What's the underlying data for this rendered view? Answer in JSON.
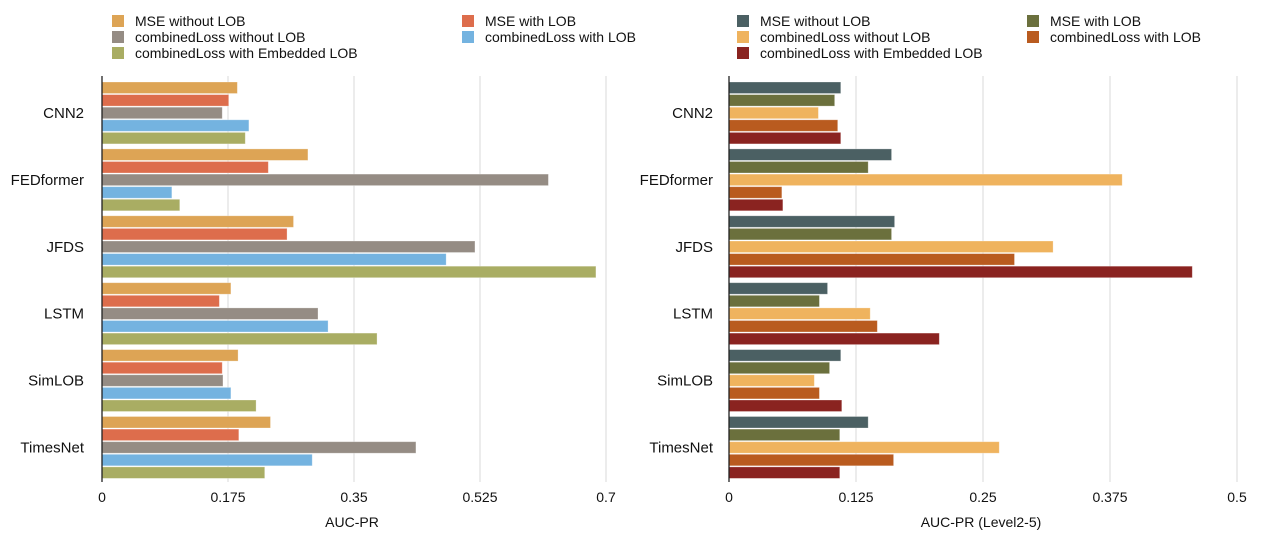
{
  "chart_data": [
    {
      "type": "bar",
      "orientation": "horizontal",
      "title": "",
      "xlabel": "AUC-PR",
      "ylabel": "",
      "xlim": [
        0,
        0.7
      ],
      "xticks": [
        0,
        0.175,
        0.35,
        0.525,
        0.7
      ],
      "xtick_labels": [
        "0",
        "0.175",
        "0.35",
        "0.525",
        "0.7"
      ],
      "grid": "vertical",
      "legend_position": "top",
      "categories": [
        "CNN2",
        "FEDformer",
        "JFDS",
        "LSTM",
        "SimLOB",
        "TimesNet"
      ],
      "series": [
        {
          "name": "MSE without LOB",
          "color": "#DDA455",
          "values": [
            0.188,
            0.286,
            0.266,
            0.179,
            0.189,
            0.234
          ]
        },
        {
          "name": "MSE with LOB",
          "color": "#DD6D4C",
          "values": [
            0.176,
            0.231,
            0.257,
            0.163,
            0.167,
            0.19
          ]
        },
        {
          "name": "combinedLoss without LOB",
          "color": "#958C84",
          "values": [
            0.167,
            0.62,
            0.518,
            0.3,
            0.168,
            0.436
          ]
        },
        {
          "name": "combinedLoss with LOB",
          "color": "#74B3E0",
          "values": [
            0.204,
            0.097,
            0.478,
            0.314,
            0.179,
            0.292
          ]
        },
        {
          "name": "combinedLoss with Embedded LOB",
          "color": "#A9AD63",
          "values": [
            0.199,
            0.108,
            0.686,
            0.382,
            0.214,
            0.226
          ]
        }
      ]
    },
    {
      "type": "bar",
      "orientation": "horizontal",
      "title": "",
      "xlabel": "AUC-PR (Level2-5)",
      "ylabel": "",
      "xlim": [
        0,
        0.5
      ],
      "xticks": [
        0,
        0.125,
        0.25,
        0.375,
        0.5
      ],
      "xtick_labels": [
        "0",
        "0.125",
        "0.25",
        "0.375",
        "0.5"
      ],
      "grid": "vertical",
      "legend_position": "top",
      "categories": [
        "CNN2",
        "FEDformer",
        "JFDS",
        "LSTM",
        "SimLOB",
        "TimesNet"
      ],
      "series": [
        {
          "name": "MSE without LOB",
          "color": "#4B6063",
          "values": [
            0.11,
            0.16,
            0.163,
            0.097,
            0.11,
            0.137
          ]
        },
        {
          "name": "MSE with LOB",
          "color": "#6B703D",
          "values": [
            0.104,
            0.137,
            0.16,
            0.089,
            0.099,
            0.109
          ]
        },
        {
          "name": "combinedLoss without LOB",
          "color": "#EFB35E",
          "values": [
            0.088,
            0.387,
            0.319,
            0.139,
            0.084,
            0.266
          ]
        },
        {
          "name": "combinedLoss with LOB",
          "color": "#B95B1F",
          "values": [
            0.107,
            0.052,
            0.281,
            0.146,
            0.089,
            0.162
          ]
        },
        {
          "name": "combinedLoss with Embedded LOB",
          "color": "#8A2320",
          "values": [
            0.11,
            0.053,
            0.456,
            0.207,
            0.111,
            0.109
          ]
        }
      ]
    }
  ]
}
